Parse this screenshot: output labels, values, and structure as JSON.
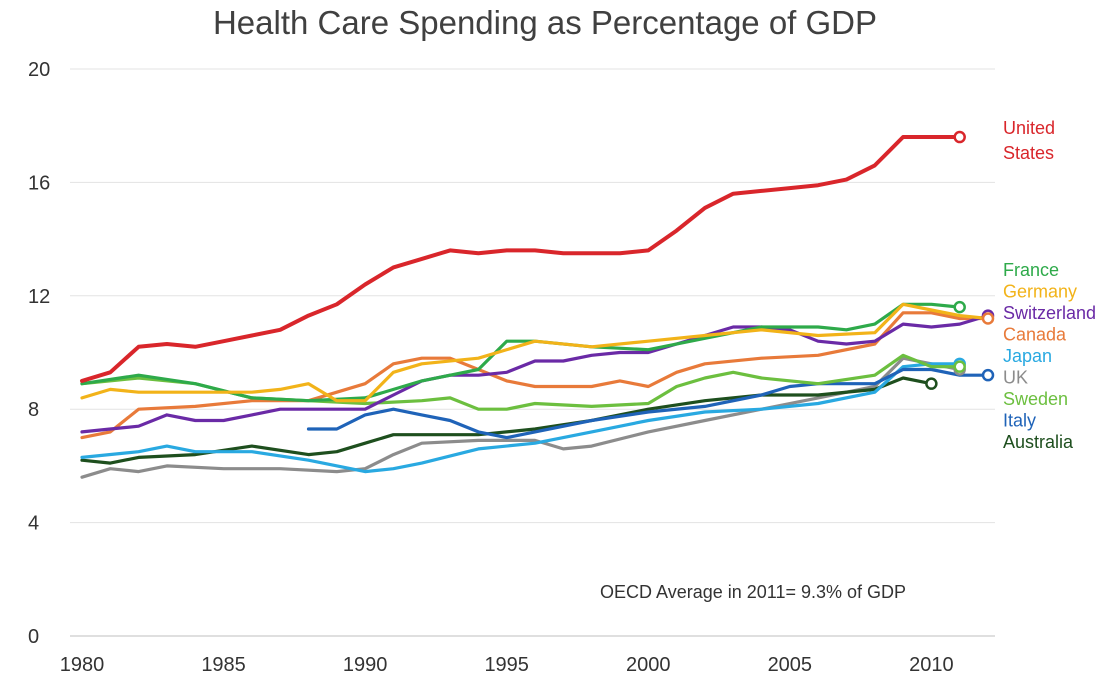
{
  "chart_data": {
    "type": "line",
    "title": "Health Care Spending as Percentage of GDP",
    "annotation": "OECD Average in 2011= 9.3% of GDP",
    "xlim": [
      1980,
      2012
    ],
    "ylim": [
      0,
      20
    ],
    "yticks": [
      0,
      4,
      8,
      12,
      16,
      20
    ],
    "xticks": [
      1980,
      1985,
      1990,
      1995,
      2000,
      2005,
      2010
    ],
    "grid": "horizontal",
    "legend_position": "right, labels beside line ends",
    "series": [
      {
        "name": "United States",
        "color": "#d9262b",
        "x": [
          1980,
          1981,
          1982,
          1983,
          1984,
          1985,
          1986,
          1987,
          1988,
          1989,
          1990,
          1991,
          1992,
          1993,
          1994,
          1995,
          1996,
          1997,
          1998,
          1999,
          2000,
          2001,
          2002,
          2003,
          2004,
          2005,
          2006,
          2007,
          2008,
          2009,
          2010,
          2011
        ],
        "y": [
          9.0,
          9.3,
          10.2,
          10.3,
          10.2,
          10.4,
          10.6,
          10.8,
          11.3,
          11.7,
          12.4,
          13.0,
          13.3,
          13.6,
          13.5,
          13.6,
          13.6,
          13.5,
          13.5,
          13.5,
          13.6,
          14.3,
          15.1,
          15.6,
          15.7,
          15.8,
          15.9,
          16.1,
          16.6,
          17.6,
          17.6,
          17.6
        ]
      },
      {
        "name": "France",
        "color": "#2eaa4a",
        "x": [
          1980,
          1982,
          1984,
          1986,
          1988,
          1990,
          1992,
          1994,
          1995,
          1996,
          1998,
          2000,
          2002,
          2004,
          2006,
          2007,
          2008,
          2009,
          2010,
          2011
        ],
        "y": [
          8.9,
          9.2,
          8.9,
          8.4,
          8.3,
          8.4,
          9.0,
          9.4,
          10.4,
          10.4,
          10.2,
          10.1,
          10.5,
          10.9,
          10.9,
          10.8,
          11.0,
          11.7,
          11.7,
          11.6
        ]
      },
      {
        "name": "Germany",
        "color": "#f2b319",
        "x": [
          1980,
          1981,
          1982,
          1984,
          1986,
          1987,
          1988,
          1989,
          1990,
          1991,
          1992,
          1994,
          1996,
          1998,
          2000,
          2002,
          2004,
          2006,
          2008,
          2009,
          2010,
          2011,
          2012
        ],
        "y": [
          8.4,
          8.7,
          8.6,
          8.6,
          8.6,
          8.7,
          8.9,
          8.3,
          8.3,
          9.3,
          9.6,
          9.8,
          10.4,
          10.2,
          10.4,
          10.6,
          10.8,
          10.6,
          10.7,
          11.7,
          11.5,
          11.3,
          11.2
        ]
      },
      {
        "name": "Switzerland",
        "color": "#6a2aa6",
        "x": [
          1980,
          1981,
          1982,
          1983,
          1984,
          1985,
          1986,
          1987,
          1988,
          1989,
          1990,
          1991,
          1992,
          1993,
          1994,
          1995,
          1996,
          1997,
          1998,
          1999,
          2000,
          2001,
          2002,
          2003,
          2004,
          2005,
          2006,
          2007,
          2008,
          2009,
          2010,
          2011,
          2012
        ],
        "y": [
          7.2,
          7.3,
          7.4,
          7.8,
          7.6,
          7.6,
          7.8,
          8.0,
          8.0,
          8.0,
          8.0,
          8.5,
          9.0,
          9.2,
          9.2,
          9.3,
          9.7,
          9.7,
          9.9,
          10.0,
          10.0,
          10.3,
          10.6,
          10.9,
          10.9,
          10.8,
          10.4,
          10.3,
          10.4,
          11.0,
          10.9,
          11.0,
          11.3
        ]
      },
      {
        "name": "Canada",
        "color": "#e87a3a",
        "x": [
          1980,
          1981,
          1982,
          1984,
          1986,
          1988,
          1990,
          1991,
          1992,
          1993,
          1994,
          1995,
          1996,
          1998,
          1999,
          2000,
          2001,
          2002,
          2004,
          2006,
          2008,
          2009,
          2010,
          2011,
          2012
        ],
        "y": [
          7.0,
          7.2,
          8.0,
          8.1,
          8.3,
          8.3,
          8.9,
          9.6,
          9.8,
          9.8,
          9.4,
          9.0,
          8.8,
          8.8,
          9.0,
          8.8,
          9.3,
          9.6,
          9.8,
          9.9,
          10.3,
          11.4,
          11.4,
          11.2,
          11.2
        ]
      },
      {
        "name": "Japan",
        "color": "#29a9e1",
        "x": [
          1980,
          1982,
          1983,
          1984,
          1986,
          1988,
          1990,
          1991,
          1992,
          1994,
          1996,
          1998,
          2000,
          2002,
          2004,
          2006,
          2008,
          2009,
          2010,
          2011
        ],
        "y": [
          6.3,
          6.5,
          6.7,
          6.5,
          6.5,
          6.2,
          5.8,
          5.9,
          6.1,
          6.6,
          6.8,
          7.2,
          7.6,
          7.9,
          8.0,
          8.2,
          8.6,
          9.5,
          9.6,
          9.6
        ]
      },
      {
        "name": "UK",
        "color": "#8c8c8c",
        "x": [
          1980,
          1981,
          1982,
          1983,
          1985,
          1987,
          1989,
          1990,
          1991,
          1992,
          1994,
          1996,
          1997,
          1998,
          2000,
          2002,
          2004,
          2006,
          2008,
          2009,
          2010,
          2011
        ],
        "y": [
          5.6,
          5.9,
          5.8,
          6.0,
          5.9,
          5.9,
          5.8,
          5.9,
          6.4,
          6.8,
          6.9,
          6.9,
          6.6,
          6.7,
          7.2,
          7.6,
          8.0,
          8.4,
          8.8,
          9.8,
          9.6,
          9.4
        ]
      },
      {
        "name": "Sweden",
        "color": "#6cbf3f",
        "x": [
          1980,
          1982,
          1984,
          1986,
          1988,
          1990,
          1992,
          1993,
          1994,
          1995,
          1996,
          1998,
          2000,
          2001,
          2002,
          2003,
          2004,
          2006,
          2008,
          2009,
          2010,
          2011
        ],
        "y": [
          8.9,
          9.1,
          8.9,
          8.4,
          8.3,
          8.2,
          8.3,
          8.4,
          8.0,
          8.0,
          8.2,
          8.1,
          8.2,
          8.8,
          9.1,
          9.3,
          9.1,
          8.9,
          9.2,
          9.9,
          9.5,
          9.5
        ]
      },
      {
        "name": "Italy",
        "color": "#1f63b8",
        "x": [
          1988,
          1989,
          1990,
          1991,
          1992,
          1993,
          1994,
          1995,
          1996,
          1998,
          2000,
          2002,
          2004,
          2005,
          2006,
          2008,
          2009,
          2010,
          2011,
          2012
        ],
        "y": [
          7.3,
          7.3,
          7.8,
          8.0,
          7.8,
          7.6,
          7.2,
          7.0,
          7.2,
          7.6,
          7.9,
          8.1,
          8.5,
          8.8,
          8.9,
          8.9,
          9.4,
          9.4,
          9.2,
          9.2
        ]
      },
      {
        "name": "Australia",
        "color": "#1e4f1e",
        "x": [
          1980,
          1981,
          1982,
          1984,
          1986,
          1988,
          1989,
          1990,
          1991,
          1992,
          1994,
          1996,
          1998,
          2000,
          2002,
          2004,
          2006,
          2008,
          2009,
          2010
        ],
        "y": [
          6.2,
          6.1,
          6.3,
          6.4,
          6.7,
          6.4,
          6.5,
          6.8,
          7.1,
          7.1,
          7.1,
          7.3,
          7.6,
          8.0,
          8.3,
          8.5,
          8.5,
          8.7,
          9.1,
          8.9
        ]
      }
    ],
    "legend_labels": [
      {
        "series": "United States",
        "lines": [
          "United",
          "States"
        ]
      },
      {
        "series": "France",
        "lines": [
          "France"
        ]
      },
      {
        "series": "Germany",
        "lines": [
          "Germany"
        ]
      },
      {
        "series": "Switzerland",
        "lines": [
          "Switzerland"
        ]
      },
      {
        "series": "Canada",
        "lines": [
          "Canada"
        ]
      },
      {
        "series": "Japan",
        "lines": [
          "Japan"
        ]
      },
      {
        "series": "UK",
        "lines": [
          "UK"
        ]
      },
      {
        "series": "Sweden",
        "lines": [
          "Sweden"
        ]
      },
      {
        "series": "Italy",
        "lines": [
          "Italy"
        ]
      },
      {
        "series": "Australia",
        "lines": [
          "Australia"
        ]
      }
    ],
    "end_markers": [
      {
        "series": "United States",
        "x": 2011,
        "y": 17.6
      },
      {
        "series": "France",
        "x": 2011,
        "y": 11.6
      },
      {
        "series": "Switzerland",
        "x": 2012,
        "y": 11.3
      },
      {
        "series": "Canada",
        "x": 2012,
        "y": 11.2
      },
      {
        "series": "Japan",
        "x": 2011,
        "y": 9.6
      },
      {
        "series": "UK",
        "x": 2011,
        "y": 9.4
      },
      {
        "series": "Sweden",
        "x": 2011,
        "y": 9.5
      },
      {
        "series": "Italy",
        "x": 2012,
        "y": 9.2
      },
      {
        "series": "Australia",
        "x": 2010,
        "y": 8.9
      }
    ]
  }
}
